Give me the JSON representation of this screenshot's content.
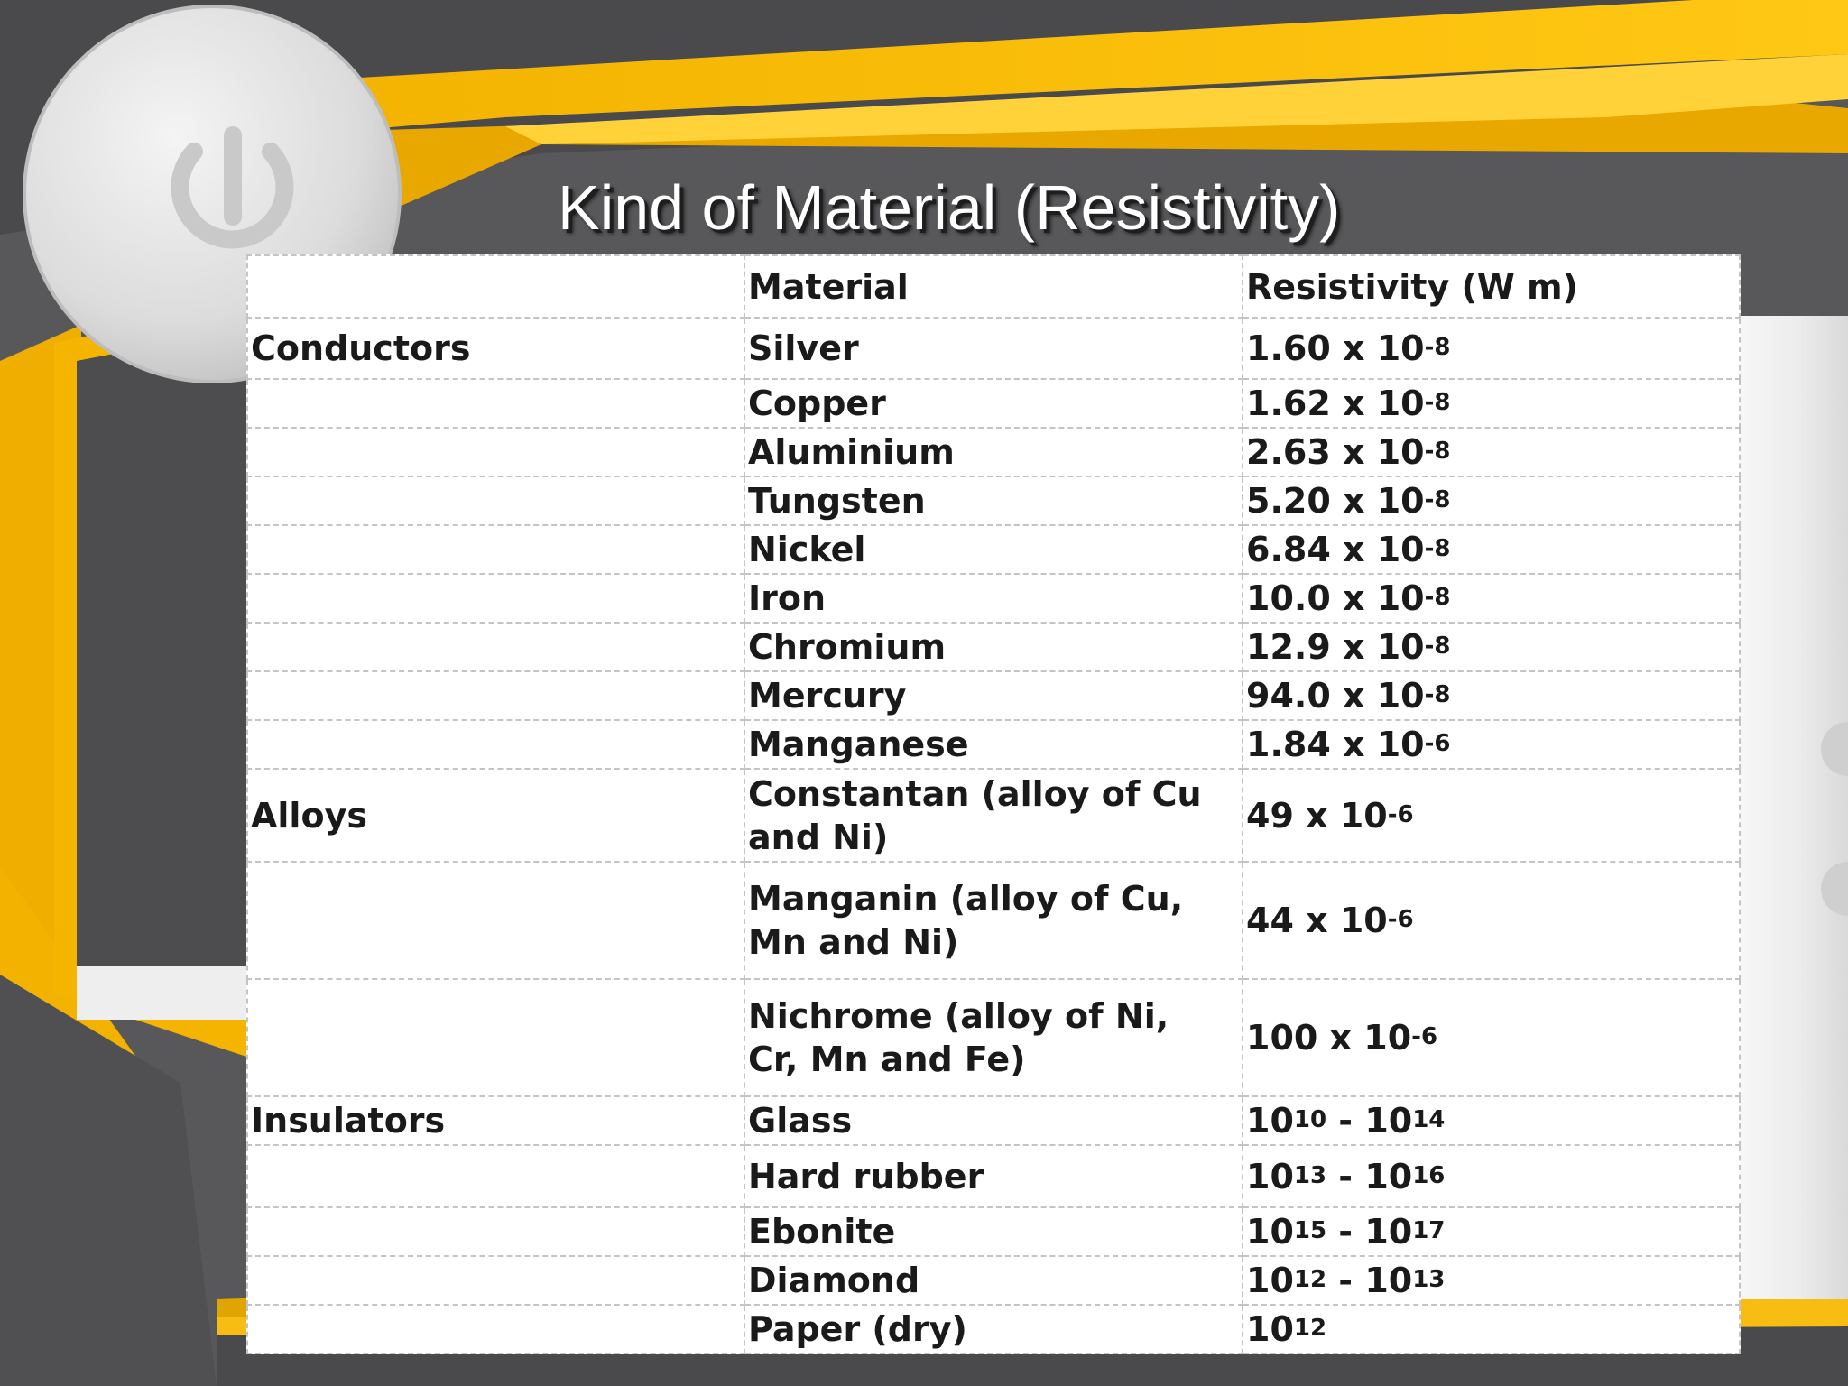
{
  "slide": {
    "title": "Kind of Material (Resistivity)",
    "colors": {
      "background": "#5b5b5e",
      "accent": "#f5b400",
      "panel": "#f2f2f2",
      "text": "#1a1a1a"
    },
    "icons": [
      "power-icon"
    ]
  },
  "table": {
    "headers": [
      "",
      "Material",
      "Resistivity (W m)"
    ],
    "rows": [
      {
        "category": "Conductors",
        "material": "Silver",
        "value": {
          "mantissa": "1.60 x 10",
          "exp": "-8"
        }
      },
      {
        "category": "",
        "material": "Copper",
        "value": {
          "mantissa": "1.62 x 10",
          "exp": "-8"
        }
      },
      {
        "category": "",
        "material": "Aluminium",
        "value": {
          "mantissa": "2.63 x 10",
          "exp": "-8"
        }
      },
      {
        "category": "",
        "material": "Tungsten",
        "value": {
          "mantissa": "5.20 x 10",
          "exp": "-8"
        }
      },
      {
        "category": "",
        "material": "Nickel",
        "value": {
          "mantissa": "6.84 x 10",
          "exp": "-8"
        }
      },
      {
        "category": "",
        "material": "Iron",
        "value": {
          "mantissa": "10.0 x 10",
          "exp": "-8"
        }
      },
      {
        "category": "",
        "material": "Chromium",
        "value": {
          "mantissa": "12.9 x 10",
          "exp": "-8"
        }
      },
      {
        "category": "",
        "material": "Mercury",
        "value": {
          "mantissa": "94.0 x 10",
          "exp": "-8"
        }
      },
      {
        "category": "",
        "material": "Manganese",
        "value": {
          "mantissa": "1.84 x 10",
          "exp": "-6"
        }
      },
      {
        "category": "Alloys",
        "material": "Constantan (alloy of Cu and Ni)",
        "value": {
          "mantissa": "49 x 10",
          "exp": "-6"
        }
      },
      {
        "category": "",
        "material": "Manganin (alloy of Cu, Mn and Ni)",
        "value": {
          "mantissa": "44 x 10",
          "exp": "-6"
        }
      },
      {
        "category": "",
        "material": "Nichrome (alloy of Ni, Cr, Mn and Fe)",
        "value": {
          "mantissa": "100 x 10",
          "exp": "-6"
        }
      },
      {
        "category": "Insulators",
        "material": "Glass",
        "value": {
          "low_base": "10",
          "low_exp": "10",
          "sep": " - ",
          "high_base": "10",
          "high_exp": "14"
        }
      },
      {
        "category": "",
        "material": "Hard rubber",
        "value": {
          "low_base": "10",
          "low_exp": "13",
          "sep": " - ",
          "high_base": "10",
          "high_exp": "16"
        }
      },
      {
        "category": "",
        "material": "Ebonite",
        "value": {
          "low_base": "10",
          "low_exp": "15",
          "sep": " - ",
          "high_base": "10",
          "high_exp": "17"
        }
      },
      {
        "category": "",
        "material": "Diamond",
        "value": {
          "low_base": "10",
          "low_exp": "12",
          "sep": " - ",
          "high_base": "10",
          "high_exp": "13"
        }
      },
      {
        "category": "",
        "material": "Paper (dry)",
        "value": {
          "low_base": "10",
          "low_exp": "12"
        }
      }
    ]
  }
}
